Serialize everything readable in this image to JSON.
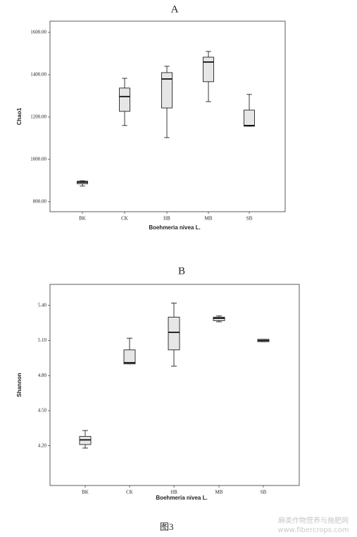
{
  "caption": "图3",
  "watermark": [
    "麻类作物营养与施肥网",
    "www.fibercrops.com"
  ],
  "chart_data": [
    {
      "type": "box",
      "title": "A",
      "x_label": "Boehmeria nivea L.",
      "y_label": "Chao1",
      "categories": [
        "BK",
        "CK",
        "HB",
        "MB",
        "SB"
      ],
      "low": [
        874,
        1160,
        1103,
        1273,
        1157
      ],
      "q1": [
        885,
        1227,
        1243,
        1367,
        1157
      ],
      "median": [
        892,
        1297,
        1380,
        1460,
        1160
      ],
      "q3": [
        897,
        1337,
        1410,
        1483,
        1233
      ],
      "high": [
        899,
        1383,
        1440,
        1510,
        1307
      ],
      "color": "#e6e6e6",
      "ylim": [
        753,
        1653
      ],
      "yticks": [
        {
          "value": 800,
          "label": "800.00"
        },
        {
          "value": 1000,
          "label": "1000.00"
        },
        {
          "value": 1200,
          "label": "1200.00"
        },
        {
          "value": 1400,
          "label": "1400.00"
        },
        {
          "value": 1600,
          "label": "1600.00"
        }
      ]
    },
    {
      "type": "box",
      "title": "B",
      "x_label": "Boehmeria nivea L.",
      "y_label": "Shannon",
      "categories": [
        "BK",
        "CK",
        "HB",
        "MB",
        "SB"
      ],
      "low": [
        4.18,
        4.9,
        4.88,
        5.26,
        5.09
      ],
      "q1": [
        4.21,
        4.9,
        5.02,
        5.27,
        5.09
      ],
      "median": [
        4.25,
        4.91,
        5.17,
        5.29,
        5.1
      ],
      "q3": [
        4.28,
        5.02,
        5.3,
        5.3,
        5.11
      ],
      "high": [
        4.33,
        5.12,
        5.42,
        5.31,
        5.11
      ],
      "color": "#e6e6e6",
      "ylim": [
        3.86,
        5.58
      ],
      "yticks": [
        {
          "value": 4.2,
          "label": "4.20"
        },
        {
          "value": 4.5,
          "label": "4.50"
        },
        {
          "value": 4.8,
          "label": "4.80"
        },
        {
          "value": 5.1,
          "label": "5.10"
        },
        {
          "value": 5.4,
          "label": "5.40"
        }
      ]
    }
  ]
}
